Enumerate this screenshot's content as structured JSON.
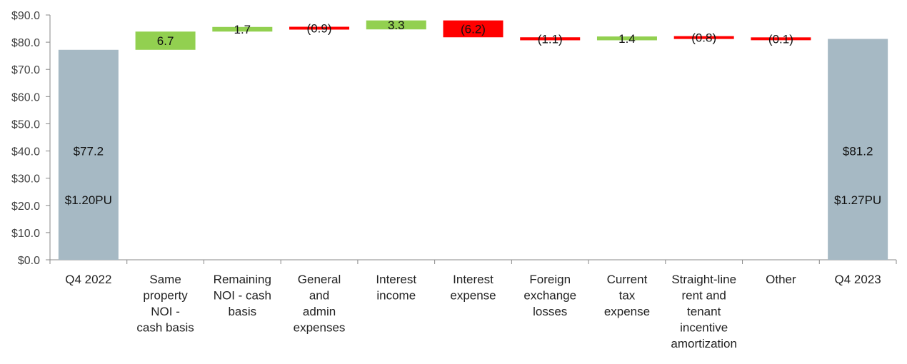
{
  "chart_data": {
    "type": "bar",
    "subtype": "waterfall",
    "title": "",
    "xlabel": "",
    "ylabel": "",
    "ylim": [
      0,
      90
    ],
    "yticks": [
      "$0.0",
      "$10.0",
      "$20.0",
      "$30.0",
      "$40.0",
      "$50.0",
      "$60.0",
      "$70.0",
      "$80.0",
      "$90.0"
    ],
    "grid": false,
    "legend": "none",
    "colors": {
      "total": "#a6b9c4",
      "increase": "#92d050",
      "decrease": "#ff0000",
      "axis": "#888888"
    },
    "bars": [
      {
        "category": [
          "Q4 2022"
        ],
        "kind": "total",
        "start": 0,
        "end": 77.2,
        "labels": [
          "$77.2",
          "$1.20PU"
        ]
      },
      {
        "category": [
          "Same",
          "property",
          "NOI -",
          "cash basis"
        ],
        "kind": "increase",
        "start": 77.2,
        "end": 83.9,
        "labels": [
          "6.7"
        ]
      },
      {
        "category": [
          "Remaining",
          "NOI - cash",
          "basis"
        ],
        "kind": "increase",
        "start": 83.9,
        "end": 85.6,
        "labels": [
          "1.7"
        ]
      },
      {
        "category": [
          "General",
          "and",
          "admin",
          "expenses"
        ],
        "kind": "decrease",
        "start": 85.6,
        "end": 84.7,
        "labels": [
          "(0.9)"
        ]
      },
      {
        "category": [
          "Interest",
          "income"
        ],
        "kind": "increase",
        "start": 84.7,
        "end": 88.0,
        "labels": [
          "3.3"
        ]
      },
      {
        "category": [
          "Interest",
          "expense"
        ],
        "kind": "decrease",
        "start": 88.0,
        "end": 81.8,
        "labels": [
          "(6.2)"
        ]
      },
      {
        "category": [
          "Foreign",
          "exchange",
          "losses"
        ],
        "kind": "decrease",
        "start": 81.8,
        "end": 80.7,
        "labels": [
          "(1.1)"
        ]
      },
      {
        "category": [
          "Current",
          "tax",
          "expense"
        ],
        "kind": "increase",
        "start": 80.7,
        "end": 82.1,
        "labels": [
          "1.4"
        ]
      },
      {
        "category": [
          "Straight-line",
          "rent and",
          "tenant",
          "incentive",
          "amortization"
        ],
        "kind": "decrease",
        "start": 82.1,
        "end": 81.3,
        "labels": [
          "(0.8)"
        ]
      },
      {
        "category": [
          "Other"
        ],
        "kind": "decrease",
        "start": 81.3,
        "end": 81.2,
        "labels": [
          "(0.1)"
        ]
      },
      {
        "category": [
          "Q4 2023"
        ],
        "kind": "total",
        "start": 0,
        "end": 81.2,
        "labels": [
          "$81.2",
          "$1.27PU"
        ]
      }
    ]
  }
}
